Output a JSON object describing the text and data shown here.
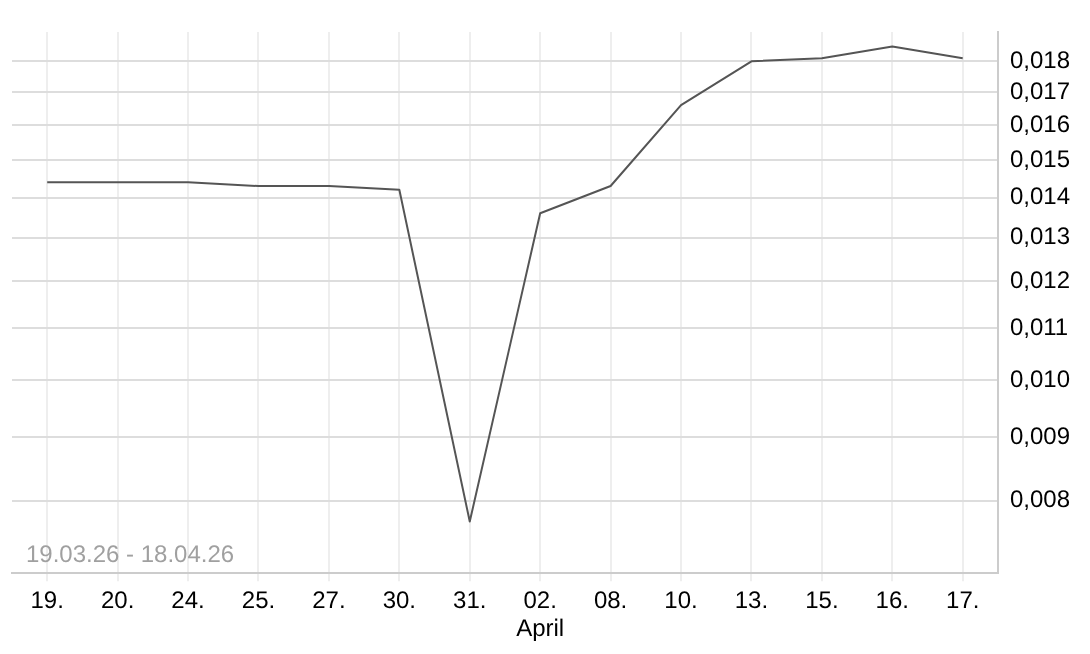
{
  "chart_data": {
    "type": "line",
    "categories": [
      "19.",
      "20.",
      "24.",
      "25.",
      "27.",
      "30.",
      "31.",
      "02.",
      "08.",
      "10.",
      "13.",
      "15.",
      "16.",
      "17."
    ],
    "series": [
      {
        "color": "#555555",
        "values": [
          0.0144,
          0.0144,
          0.0144,
          0.0143,
          0.0143,
          0.0142,
          0.0077,
          0.0136,
          0.0143,
          0.0166,
          0.018,
          0.0181,
          0.0185,
          0.0181
        ]
      }
    ],
    "log": "y",
    "ylim": [
      0.007,
      0.019
    ],
    "yticks": [
      {
        "value": 0.008,
        "label": "0,008"
      },
      {
        "value": 0.009,
        "label": "0,009"
      },
      {
        "value": 0.01,
        "label": "0,010"
      },
      {
        "value": 0.011,
        "label": "0,011"
      },
      {
        "value": 0.012,
        "label": "0,012"
      },
      {
        "value": 0.013,
        "label": "0,013"
      },
      {
        "value": 0.014,
        "label": "0,014"
      },
      {
        "value": 0.015,
        "label": "0,015"
      },
      {
        "value": 0.016,
        "label": "0,016"
      },
      {
        "value": 0.017,
        "label": "0,017"
      },
      {
        "value": 0.018,
        "label": "0,018"
      }
    ],
    "grid": true,
    "marker": "none",
    "annotations": [
      "19.03.26 - 18.04.26",
      "April"
    ]
  }
}
